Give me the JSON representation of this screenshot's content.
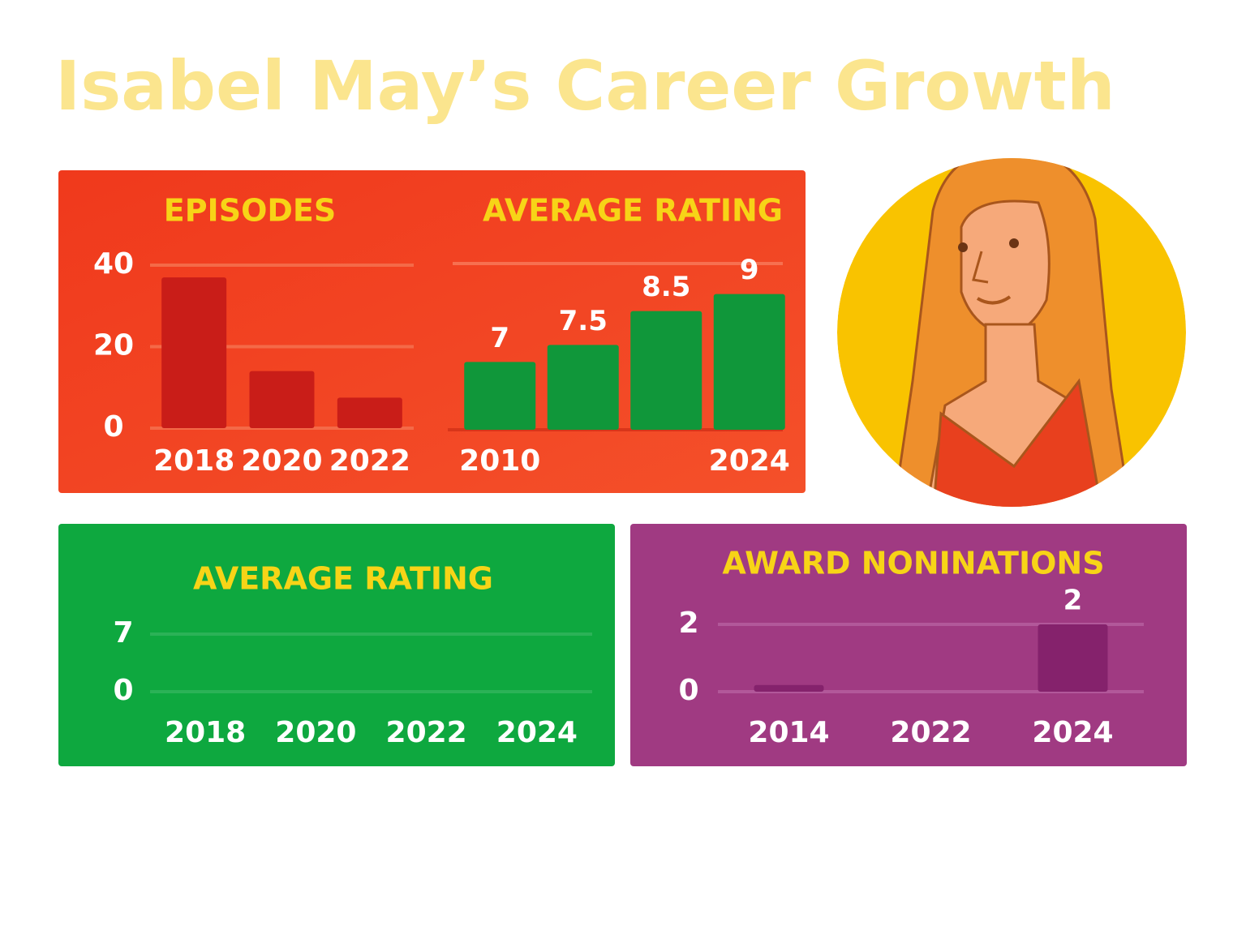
{
  "title": "Isabel May’s Career Growth",
  "chart_data": [
    {
      "type": "bar",
      "title": "EPISODES",
      "categories": [
        "2018",
        "2020",
        "2022"
      ],
      "values": [
        37,
        14,
        7.5
      ],
      "color": "#c91d18",
      "ylim": [
        0,
        40
      ],
      "yticks": [
        0,
        20,
        40
      ],
      "grid": true
    },
    {
      "type": "bar",
      "title": "AVERAGE RATING",
      "categories": [
        "2010",
        null,
        null,
        "2024"
      ],
      "values": [
        7,
        7.5,
        8.5,
        9
      ],
      "color": "#10973a",
      "ylim": [
        5,
        9.9
      ],
      "data_labels": true
    },
    {
      "type": "bar",
      "title": "AVERAGE RATING",
      "categories": [
        "2018",
        "2020",
        "2022",
        "2024"
      ],
      "color": "#10973a",
      "ylim": [
        0,
        7
      ],
      "yticks": [
        0,
        7
      ],
      "grid": true
    },
    {
      "type": "bar",
      "title": "AWARD NONINATIONS",
      "categories": [
        "2014",
        "2022",
        "2024"
      ],
      "values": [
        0.2,
        null,
        2
      ],
      "value_labels": [
        null,
        null,
        "2"
      ],
      "color": "#85226c",
      "ylim": [
        0,
        2
      ],
      "yticks": [
        0,
        2
      ],
      "grid": true
    }
  ]
}
